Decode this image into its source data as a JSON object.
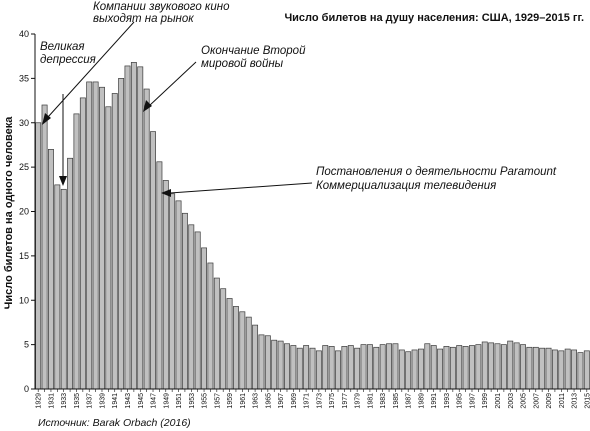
{
  "chart_data": {
    "type": "bar",
    "title": "Число билетов на душу населения: США, 1929–2015 гг.",
    "ylabel": "Число билетов на одного человека",
    "xlabel": "",
    "source": "Источник: Barak Orbach (2016)",
    "ylim": [
      0,
      40
    ],
    "yticks": [
      0,
      5,
      10,
      15,
      20,
      25,
      30,
      35,
      40
    ],
    "grid": false,
    "bar_color": "#c0c0c0",
    "x": [
      1929,
      1930,
      1931,
      1932,
      1933,
      1934,
      1935,
      1936,
      1937,
      1938,
      1939,
      1940,
      1941,
      1942,
      1943,
      1944,
      1945,
      1946,
      1947,
      1948,
      1949,
      1950,
      1951,
      1952,
      1953,
      1954,
      1955,
      1956,
      1957,
      1958,
      1959,
      1960,
      1961,
      1962,
      1963,
      1964,
      1965,
      1966,
      1967,
      1968,
      1969,
      1970,
      1971,
      1972,
      1973,
      1974,
      1975,
      1976,
      1977,
      1978,
      1979,
      1980,
      1981,
      1982,
      1983,
      1984,
      1985,
      1986,
      1987,
      1988,
      1989,
      1990,
      1991,
      1992,
      1993,
      1994,
      1995,
      1996,
      1997,
      1998,
      1999,
      2000,
      2001,
      2002,
      2003,
      2004,
      2005,
      2006,
      2007,
      2008,
      2009,
      2010,
      2011,
      2012,
      2013,
      2014,
      2015
    ],
    "xtick_labels": [
      "1929",
      "1931",
      "1933",
      "1935",
      "1937",
      "1939",
      "1941",
      "1943",
      "1945",
      "1947",
      "1949",
      "1951",
      "1953",
      "1955",
      "1957",
      "1959",
      "1961",
      "1963",
      "1965",
      "1967",
      "1969",
      "1971",
      "1973",
      "1975",
      "1977",
      "1979",
      "1981",
      "1983",
      "1985",
      "1987",
      "1989",
      "1991",
      "1993",
      "1995",
      "1997",
      "1999",
      "2001",
      "2003",
      "2005",
      "2007",
      "2009",
      "2011",
      "2013",
      "2015"
    ],
    "values": [
      30.0,
      32.0,
      27.0,
      23.0,
      22.5,
      26.0,
      31.0,
      32.8,
      34.6,
      34.6,
      34.0,
      31.8,
      33.3,
      35.0,
      36.4,
      36.8,
      36.3,
      33.8,
      29.0,
      25.6,
      23.5,
      22.0,
      21.2,
      19.8,
      18.5,
      17.7,
      15.9,
      14.2,
      12.5,
      11.3,
      10.2,
      9.3,
      8.7,
      8.1,
      7.2,
      6.1,
      6.0,
      5.5,
      5.4,
      5.1,
      4.9,
      4.6,
      4.9,
      4.6,
      4.3,
      4.9,
      4.8,
      4.3,
      4.8,
      4.9,
      4.6,
      5.0,
      5.0,
      4.7,
      5.0,
      5.1,
      5.1,
      4.4,
      4.2,
      4.4,
      4.5,
      5.1,
      4.9,
      4.5,
      4.8,
      4.7,
      4.9,
      4.8,
      4.9,
      5.0,
      5.3,
      5.2,
      5.1,
      5.0,
      5.4,
      5.2,
      5.0,
      4.7,
      4.7,
      4.6,
      4.6,
      4.4,
      4.3,
      4.5,
      4.4,
      4.1,
      4.3
    ],
    "annotations": [
      {
        "lines": [
          "Компании звукового кино",
          "выходят на рынок"
        ],
        "x": 1933
      },
      {
        "lines": [
          "Великая",
          "депрессия"
        ],
        "x": 1929
      },
      {
        "lines": [
          "Окончание Второй",
          "мировой войны"
        ],
        "x": 1946
      },
      {
        "lines": [
          "Постановления о деятельности Paramount",
          "Коммерциализация телевидения"
        ],
        "x": 1949
      }
    ]
  }
}
